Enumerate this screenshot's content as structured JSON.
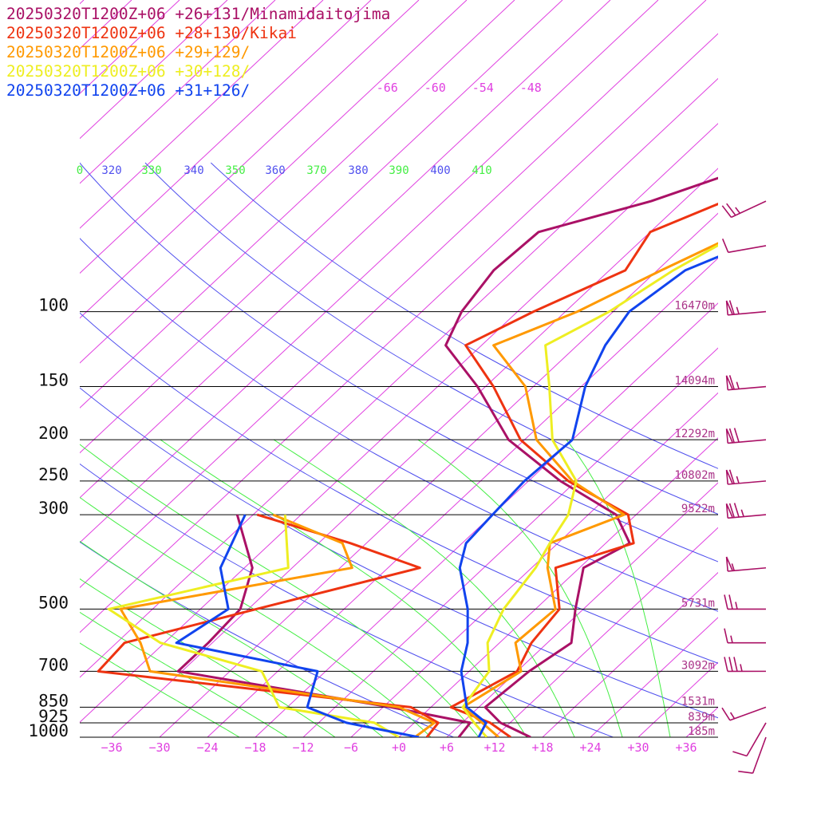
{
  "colors": {
    "isotherm": "#e040e0",
    "theta": "#5050ee",
    "theta_e": "#44ee44",
    "isobar": "#000000",
    "height_label": "#aa3388",
    "barb": "#aa1166"
  },
  "chart_data": {
    "type": "line",
    "subtype": "skew-t log-p sounding",
    "pressure_levels": [
      100,
      150,
      200,
      250,
      300,
      500,
      700,
      850,
      925,
      1000
    ],
    "pressure_labels": [
      "100",
      "150",
      "200",
      "250",
      "300",
      "500",
      "700",
      "850",
      "925",
      "1000"
    ],
    "height_labels": [
      {
        "p": 100,
        "text": "16470m"
      },
      {
        "p": 150,
        "text": "14094m"
      },
      {
        "p": 200,
        "text": "12292m"
      },
      {
        "p": 250,
        "text": "10802m"
      },
      {
        "p": 300,
        "text": "9522m"
      },
      {
        "p": 500,
        "text": "5731m"
      },
      {
        "p": 700,
        "text": "3092m"
      },
      {
        "p": 850,
        "text": "1531m"
      },
      {
        "p": 925,
        "text": "839m"
      },
      {
        "p": 1000,
        "text": "185m"
      }
    ],
    "temperature_ticks": [
      -36,
      -30,
      -24,
      -18,
      -12,
      -6,
      0,
      6,
      12,
      18,
      24,
      30,
      36
    ],
    "temperature_tick_labels": [
      "−36",
      "−30",
      "−24",
      "−18",
      "−12",
      "−6",
      "+0",
      "+6",
      "+12",
      "+18",
      "+24",
      "+30",
      "+36"
    ],
    "isotherm_labels_upper": [
      {
        "t": -66,
        "text": "-66"
      },
      {
        "t": -60,
        "text": "-60"
      },
      {
        "t": -54,
        "text": "-54"
      },
      {
        "t": -48,
        "text": "-48"
      }
    ],
    "theta_labels": [
      {
        "text": "0",
        "k": "e"
      },
      {
        "text": "320",
        "k": "t"
      },
      {
        "text": "330",
        "k": "e"
      },
      {
        "text": "340",
        "k": "t"
      },
      {
        "text": "350",
        "k": "e"
      },
      {
        "text": "360",
        "k": "t"
      },
      {
        "text": "370",
        "k": "e"
      },
      {
        "text": "380",
        "k": "t"
      },
      {
        "text": "390",
        "k": "e"
      },
      {
        "text": "400",
        "k": "t"
      },
      {
        "text": "410",
        "k": "e"
      }
    ],
    "series": [
      {
        "name": "20250320T1200Z+06 +26+131/Minamidaitojima",
        "color": "#aa1166",
        "temperature": [
          [
            1000,
            16.5
          ],
          [
            925,
            10.8
          ],
          [
            850,
            6.8
          ],
          [
            700,
            7.5
          ],
          [
            600,
            9.0
          ],
          [
            500,
            5.0
          ],
          [
            400,
            0.5
          ],
          [
            350,
            3.0
          ],
          [
            300,
            -2.5
          ],
          [
            250,
            -14.0
          ],
          [
            200,
            -26.0
          ],
          [
            150,
            -37.0
          ],
          [
            120,
            -46.5
          ],
          [
            100,
            -49.0
          ],
          [
            80,
            -50.5
          ],
          [
            65,
            -50.0
          ],
          [
            55,
            -40.0
          ],
          [
            40,
            -26.5
          ],
          [
            30,
            -23.0
          ]
        ],
        "dewpoint": [
          [
            1000,
            7.5
          ],
          [
            925,
            7.0
          ],
          [
            850,
            -5.0
          ],
          [
            700,
            -36.5
          ],
          [
            600,
            -36.5
          ],
          [
            500,
            -37.0
          ],
          [
            400,
            -41.0
          ],
          [
            300,
            -50.0
          ]
        ]
      },
      {
        "name": "20250320T1200Z+06 +28+130/Kikai",
        "color": "#ee3311",
        "temperature": [
          [
            1000,
            14.0
          ],
          [
            925,
            9.5
          ],
          [
            850,
            2.5
          ],
          [
            700,
            6.0
          ],
          [
            600,
            4.0
          ],
          [
            500,
            3.0
          ],
          [
            400,
            -3.0
          ],
          [
            350,
            3.5
          ],
          [
            300,
            -1.0
          ],
          [
            250,
            -13.0
          ],
          [
            200,
            -24.5
          ],
          [
            150,
            -35.0
          ],
          [
            120,
            -44.0
          ],
          [
            100,
            -40.0
          ],
          [
            80,
            -34.0
          ],
          [
            65,
            -36.0
          ],
          [
            45,
            -24.5
          ],
          [
            30,
            -21.0
          ]
        ],
        "dewpoint": [
          [
            1000,
            3.5
          ],
          [
            925,
            3.0
          ],
          [
            850,
            -2.5
          ],
          [
            700,
            -46.5
          ],
          [
            600,
            -47.0
          ],
          [
            500,
            -35.0
          ],
          [
            400,
            -20.0
          ],
          [
            350,
            -32.0
          ],
          [
            300,
            -47.5
          ]
        ]
      },
      {
        "name": "20250320T1200Z+06 +29+129/",
        "color": "#ff9900",
        "temperature": [
          [
            1000,
            12.5
          ],
          [
            925,
            8.5
          ],
          [
            850,
            4.0
          ],
          [
            700,
            6.5
          ],
          [
            600,
            2.0
          ],
          [
            500,
            2.5
          ],
          [
            400,
            -4.0
          ],
          [
            350,
            -7.0
          ],
          [
            300,
            -1.5
          ],
          [
            250,
            -12.5
          ],
          [
            200,
            -22.5
          ],
          [
            150,
            -31.0
          ],
          [
            120,
            -40.5
          ],
          [
            100,
            -34.5
          ],
          [
            80,
            -29.5
          ],
          [
            65,
            -24.5
          ],
          [
            45,
            -19.5
          ],
          [
            30,
            -18.0
          ]
        ],
        "dewpoint": [
          [
            1000,
            2.0
          ],
          [
            925,
            2.5
          ],
          [
            850,
            -4.0
          ],
          [
            700,
            -40.0
          ],
          [
            600,
            -45.0
          ],
          [
            500,
            -52.0
          ],
          [
            400,
            -28.5
          ],
          [
            350,
            -33.0
          ],
          [
            300,
            -45.5
          ]
        ]
      },
      {
        "name": "20250320T1200Z+06 +30+128/",
        "color": "#eeee22",
        "temperature": [
          [
            1000,
            11.0
          ],
          [
            925,
            7.5
          ],
          [
            850,
            4.0
          ],
          [
            700,
            2.5
          ],
          [
            600,
            -1.5
          ],
          [
            500,
            -4.0
          ],
          [
            400,
            -5.5
          ],
          [
            350,
            -7.0
          ],
          [
            300,
            -8.5
          ],
          [
            250,
            -12.0
          ],
          [
            200,
            -20.5
          ],
          [
            150,
            -28.0
          ],
          [
            120,
            -34.0
          ],
          [
            100,
            -30.5
          ],
          [
            80,
            -28.0
          ],
          [
            65,
            -24.5
          ],
          [
            45,
            -17.5
          ],
          [
            30,
            -16.5
          ]
        ],
        "dewpoint": [
          [
            1000,
            0.0
          ],
          [
            925,
            -5.0
          ],
          [
            850,
            -19.0
          ],
          [
            700,
            -26.0
          ],
          [
            600,
            -42.5
          ],
          [
            500,
            -53.5
          ],
          [
            400,
            -36.5
          ],
          [
            300,
            -44.0
          ]
        ]
      },
      {
        "name": "20250320T1200Z+06 +31+126/",
        "color": "#1144ee",
        "temperature": [
          [
            1000,
            10.0
          ],
          [
            925,
            9.0
          ],
          [
            850,
            4.5
          ],
          [
            700,
            -1.0
          ],
          [
            600,
            -4.0
          ],
          [
            500,
            -8.5
          ],
          [
            400,
            -15.0
          ],
          [
            350,
            -17.5
          ],
          [
            300,
            -18.0
          ],
          [
            250,
            -18.5
          ],
          [
            200,
            -18.0
          ],
          [
            150,
            -23.5
          ],
          [
            120,
            -26.5
          ],
          [
            100,
            -28.0
          ],
          [
            80,
            -26.5
          ],
          [
            65,
            -20.0
          ],
          [
            45,
            -16.0
          ],
          [
            30,
            -15.5
          ]
        ],
        "dewpoint": [
          [
            1000,
            2.5
          ],
          [
            925,
            -8.5
          ],
          [
            850,
            -15.5
          ],
          [
            700,
            -19.0
          ],
          [
            600,
            -40.5
          ],
          [
            500,
            -38.5
          ],
          [
            400,
            -45.0
          ],
          [
            300,
            -49.0
          ]
        ]
      }
    ],
    "wind_barbs": [
      {
        "p": 1000,
        "dir": 200,
        "kt": 10,
        "over_axis": true
      },
      {
        "p": 925,
        "dir": 210,
        "kt": 10,
        "over_axis": true
      },
      {
        "p": 850,
        "dir": 250,
        "kt": 15,
        "over_axis": true
      },
      {
        "p": 700,
        "dir": 270,
        "kt": 35
      },
      {
        "p": 600,
        "dir": 270,
        "kt": 15
      },
      {
        "p": 500,
        "dir": 270,
        "kt": 25
      },
      {
        "p": 400,
        "dir": 265,
        "kt": 55
      },
      {
        "p": 300,
        "dir": 265,
        "kt": 75
      },
      {
        "p": 250,
        "dir": 265,
        "kt": 65
      },
      {
        "p": 200,
        "dir": 265,
        "kt": 70
      },
      {
        "p": 150,
        "dir": 265,
        "kt": 65
      },
      {
        "p": 100,
        "dir": 265,
        "kt": 65
      },
      {
        "p": 70,
        "dir": 260,
        "kt": 10
      },
      {
        "p": 55,
        "dir": 245,
        "kt": 25
      }
    ]
  }
}
